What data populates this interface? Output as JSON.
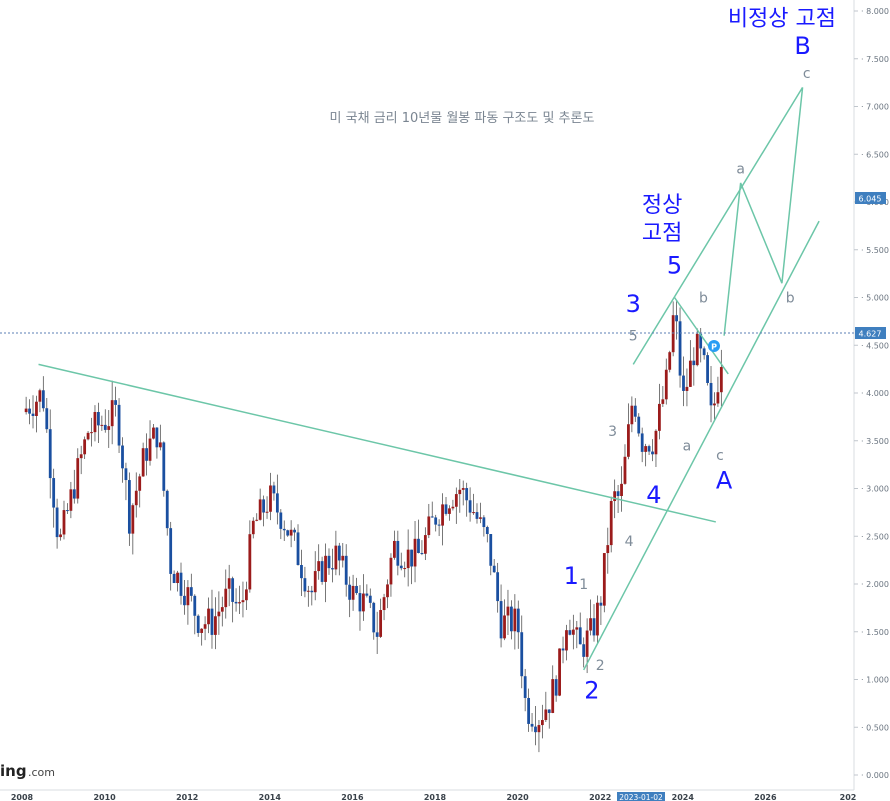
{
  "chart_data": {
    "type": "candlestick",
    "title": "미 국채 금리 10년물 월봉 파동 구조도 및 추론도",
    "ylim": [
      0,
      8
    ],
    "xlim": [
      2008,
      2028
    ],
    "y_ticks": [
      "0.000",
      "0.500",
      "1.000",
      "1.500",
      "2.000",
      "2.500",
      "3.000",
      "3.500",
      "4.000",
      "4.500",
      "5.000",
      "5.500",
      "6.000",
      "6.500",
      "7.000",
      "7.500",
      "8.000"
    ],
    "x_ticks": [
      "2008",
      "2010",
      "2012",
      "2014",
      "2016",
      "2018",
      "2020",
      "2022",
      "2024",
      "2026",
      "202"
    ],
    "cursor_date": "2023-01-02",
    "price_tags": [
      {
        "value": 6.045,
        "label": "6.045"
      },
      {
        "value": 4.627,
        "label": "4.627"
      }
    ],
    "current_price_line": 4.627,
    "price_series": [
      [
        2008.0,
        3.8
      ],
      [
        2008.5,
        4.0
      ],
      [
        2008.9,
        2.4
      ],
      [
        2009.3,
        3.1
      ],
      [
        2009.6,
        3.6
      ],
      [
        2010.0,
        3.7
      ],
      [
        2010.3,
        3.8
      ],
      [
        2010.6,
        2.7
      ],
      [
        2011.0,
        3.4
      ],
      [
        2011.3,
        3.6
      ],
      [
        2011.6,
        2.2
      ],
      [
        2012.0,
        1.9
      ],
      [
        2012.3,
        1.6
      ],
      [
        2012.6,
        1.6
      ],
      [
        2013.0,
        1.9
      ],
      [
        2013.3,
        1.7
      ],
      [
        2013.6,
        2.6
      ],
      [
        2014.0,
        2.9
      ],
      [
        2014.3,
        2.7
      ],
      [
        2014.6,
        2.4
      ],
      [
        2015.0,
        1.9
      ],
      [
        2015.3,
        2.2
      ],
      [
        2015.6,
        2.3
      ],
      [
        2016.0,
        1.9
      ],
      [
        2016.3,
        1.8
      ],
      [
        2016.6,
        1.5
      ],
      [
        2017.0,
        2.4
      ],
      [
        2017.3,
        2.3
      ],
      [
        2017.6,
        2.3
      ],
      [
        2018.0,
        2.7
      ],
      [
        2018.3,
        2.9
      ],
      [
        2018.6,
        3.0
      ],
      [
        2018.9,
        2.8
      ],
      [
        2019.3,
        2.4
      ],
      [
        2019.6,
        1.6
      ],
      [
        2020.0,
        1.6
      ],
      [
        2020.2,
        0.7
      ],
      [
        2020.5,
        0.6
      ],
      [
        2020.8,
        0.8
      ],
      [
        2021.0,
        1.1
      ],
      [
        2021.2,
        1.7
      ],
      [
        2021.5,
        1.3
      ],
      [
        2021.8,
        1.5
      ],
      [
        2022.0,
        1.8
      ],
      [
        2022.3,
        2.9
      ],
      [
        2022.5,
        2.9
      ],
      [
        2022.8,
        4.0
      ],
      [
        2023.0,
        3.5
      ],
      [
        2023.3,
        3.5
      ],
      [
        2023.6,
        4.1
      ],
      [
        2023.8,
        4.9
      ],
      [
        2024.0,
        3.9
      ],
      [
        2024.3,
        4.5
      ],
      [
        2024.5,
        4.3
      ],
      [
        2024.7,
        3.7
      ],
      [
        2024.9,
        4.3
      ],
      [
        2025.0,
        4.6
      ]
    ],
    "trend_lines": [
      {
        "name": "long-downtrend",
        "points": [
          [
            2008.4,
            4.3
          ],
          [
            2024.8,
            2.65
          ]
        ]
      },
      {
        "name": "channel-lower",
        "points": [
          [
            2021.6,
            1.1
          ],
          [
            2027.3,
            5.8
          ]
        ]
      },
      {
        "name": "channel-upper",
        "points": [
          [
            2022.8,
            4.3
          ],
          [
            2026.9,
            7.2
          ]
        ]
      },
      {
        "name": "correction-upper",
        "points": [
          [
            2023.8,
            5.0
          ],
          [
            2025.1,
            4.2
          ]
        ]
      }
    ],
    "projection_path": [
      [
        2025.0,
        4.6
      ],
      [
        2025.4,
        6.2
      ],
      [
        2026.4,
        5.15
      ],
      [
        2026.9,
        7.2
      ]
    ],
    "wave_labels": [
      {
        "text": "1",
        "x": 2021.3,
        "y": 2.0,
        "color": "#1a1aff",
        "size": "large"
      },
      {
        "text": "2",
        "x": 2021.8,
        "y": 0.8,
        "color": "#1a1aff",
        "size": "large"
      },
      {
        "text": "3",
        "x": 2022.8,
        "y": 4.85,
        "color": "#1a1aff",
        "size": "large"
      },
      {
        "text": "4",
        "x": 2023.3,
        "y": 2.85,
        "color": "#1a1aff",
        "size": "large"
      },
      {
        "text": "5",
        "x": 2023.8,
        "y": 5.25,
        "color": "#1a1aff",
        "size": "large"
      },
      {
        "text": "A",
        "x": 2025.0,
        "y": 3.0,
        "color": "#1a1aff",
        "size": "large"
      },
      {
        "text": "B",
        "x": 2026.9,
        "y": 7.55,
        "color": "#1a1aff",
        "size": "large"
      },
      {
        "text": "1",
        "x": 2021.6,
        "y": 1.95,
        "color": "#7f8c99",
        "size": "small"
      },
      {
        "text": "2",
        "x": 2022.0,
        "y": 1.1,
        "color": "#7f8c99",
        "size": "small"
      },
      {
        "text": "3",
        "x": 2022.3,
        "y": 3.55,
        "color": "#7f8c99",
        "size": "small"
      },
      {
        "text": "4",
        "x": 2022.7,
        "y": 2.4,
        "color": "#7f8c99",
        "size": "small"
      },
      {
        "text": "5",
        "x": 2022.8,
        "y": 4.55,
        "color": "#7f8c99",
        "size": "small"
      },
      {
        "text": "a",
        "x": 2024.1,
        "y": 3.4,
        "color": "#7f8c99",
        "size": "small"
      },
      {
        "text": "b",
        "x": 2024.5,
        "y": 4.95,
        "color": "#7f8c99",
        "size": "small"
      },
      {
        "text": "c",
        "x": 2024.9,
        "y": 3.3,
        "color": "#7f8c99",
        "size": "small"
      },
      {
        "text": "a",
        "x": 2025.4,
        "y": 6.3,
        "color": "#7f8c99",
        "size": "small"
      },
      {
        "text": "b",
        "x": 2026.6,
        "y": 4.95,
        "color": "#7f8c99",
        "size": "small"
      },
      {
        "text": "c",
        "x": 2027.0,
        "y": 7.3,
        "color": "#7f8c99",
        "size": "small"
      }
    ],
    "annotations": [
      {
        "text_line1": "정상",
        "text_line2": "고점",
        "x": 2023.5,
        "y": 5.6
      },
      {
        "text_line1": "비정상 고점",
        "x": 2026.4,
        "y": 7.9
      }
    ],
    "watermark": {
      "brand": "ing",
      "suffix": ".com"
    }
  }
}
